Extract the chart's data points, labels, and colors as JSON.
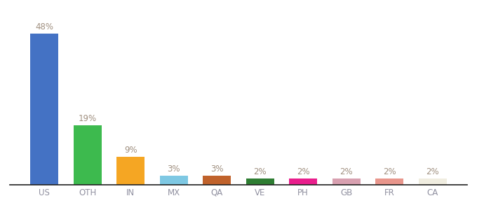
{
  "categories": [
    "US",
    "OTH",
    "IN",
    "MX",
    "QA",
    "VE",
    "PH",
    "GB",
    "FR",
    "CA"
  ],
  "values": [
    48,
    19,
    9,
    3,
    3,
    2,
    2,
    2,
    2,
    2
  ],
  "colors": [
    "#4472c4",
    "#3dba4e",
    "#f5a623",
    "#7ec8e3",
    "#c0622b",
    "#2e7d32",
    "#e91e8c",
    "#d8a0b0",
    "#e8968c",
    "#f0ede0"
  ],
  "bg_color": "#ffffff",
  "label_color": "#a09080",
  "label_fontsize": 8.5,
  "bar_width": 0.65,
  "ylim": [
    0,
    54
  ],
  "xlabel_color": "#9090a0",
  "xlabel_fontsize": 8.5
}
